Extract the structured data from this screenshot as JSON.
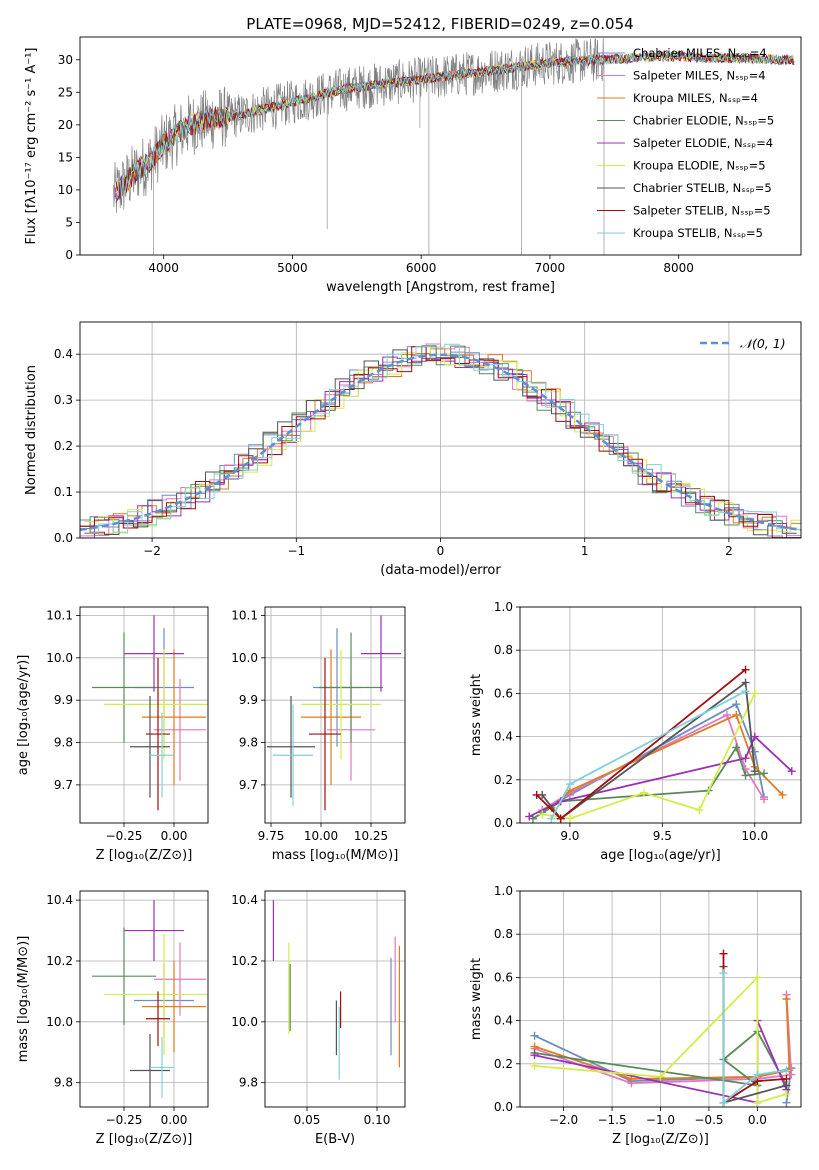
{
  "figure_title": "PLATE=0968, MJD=52412, FIBERID=0249, z=0.054",
  "colors": [
    "#6c8ebf",
    "#e377c2",
    "#e07b1f",
    "#5a8a5a",
    "#9b30b6",
    "#d4ec4a",
    "#555555",
    "#a30d0d",
    "#7fd1d8"
  ],
  "chart_data": [
    {
      "id": "spectrum",
      "type": "line",
      "title": "PLATE=0968, MJD=52412, FIBERID=0249, z=0.054",
      "xlabel": "wavelength [Angstrom, rest frame]",
      "ylabel": "Flux [fλ10⁻¹⁷ erg cm⁻² s⁻¹ A⁻¹]",
      "xlim": [
        3350,
        8950
      ],
      "ylim": [
        0,
        33.5
      ],
      "xticks": [
        4000,
        5000,
        6000,
        7000,
        8000
      ],
      "yticks": [
        0,
        5,
        10,
        15,
        20,
        25,
        30
      ],
      "grid": false,
      "legend_position": "right",
      "legend": [
        "Chabrier MILES, N_SSP=4",
        "Salpeter MILES, N_SSP=4",
        "Kroupa MILES, N_SSP=4",
        "Chabrier ELODIE, N_SSP=5",
        "Salpeter ELODIE, N_SSP=4",
        "Kroupa ELODIE, N_SSP=5",
        "Chabrier STELIB, N_SSP=5",
        "Salpeter STELIB, N_SSP=5",
        "Kroupa STELIB, N_SSP=5"
      ],
      "continuum": {
        "x": [
          3600,
          3700,
          3800,
          3900,
          4000,
          4100,
          4200,
          4300,
          4400,
          4600,
          4800,
          5000,
          5200,
          5400,
          5600,
          5800,
          6000,
          6200,
          6400,
          6600,
          6800,
          7000,
          7200,
          7400,
          7600,
          7800,
          8000,
          8200,
          8400,
          8600,
          8800
        ],
        "y": [
          9,
          11,
          13,
          14.5,
          17,
          18.5,
          20,
          20.5,
          21,
          21.5,
          22.5,
          23.5,
          24.5,
          25.5,
          26,
          26.5,
          27,
          27.5,
          28,
          28.5,
          29,
          29.5,
          29.8,
          30,
          30.2,
          30.5,
          30.5,
          30.3,
          30.3,
          30.2,
          30
        ]
      }
    },
    {
      "id": "residuals",
      "type": "line",
      "xlabel": "(data-model)/error",
      "ylabel": "Normed distribution",
      "xlim": [
        -2.5,
        2.5
      ],
      "ylim": [
        0,
        0.47
      ],
      "xticks": [
        -2,
        -1,
        0,
        1,
        2
      ],
      "yticks": [
        0.0,
        0.1,
        0.2,
        0.3,
        0.4
      ],
      "grid": true,
      "legend": [
        "𝒩(0, 1)"
      ],
      "legend_position": "top-right",
      "gaussian": {
        "mean": 0,
        "sigma": 1
      }
    },
    {
      "id": "age_vs_Z",
      "type": "scatter",
      "xlabel": "Z [log₁₀(Z/Z⊙)]",
      "ylabel": "age  [log₁₀(age/yr)]",
      "xlim": [
        -0.47,
        0.17
      ],
      "ylim": [
        9.61,
        10.12
      ],
      "xticks": [
        -0.25,
        0.0
      ],
      "yticks": [
        9.7,
        9.8,
        9.9,
        10.0,
        10.1
      ],
      "grid": true,
      "points": [
        {
          "x": -0.05,
          "y": 9.93,
          "xerr": 0.15,
          "yerr": 0.14,
          "c": 0
        },
        {
          "x": 0.03,
          "y": 9.83,
          "xerr": 0.13,
          "yerr": 0.12,
          "c": 1
        },
        {
          "x": 0.0,
          "y": 9.86,
          "xerr": 0.16,
          "yerr": 0.16,
          "c": 2
        },
        {
          "x": -0.25,
          "y": 9.93,
          "xerr": 0.16,
          "yerr": 0.13,
          "c": 3
        },
        {
          "x": -0.1,
          "y": 10.01,
          "xerr": 0.15,
          "yerr": 0.09,
          "c": 4
        },
        {
          "x": -0.05,
          "y": 9.89,
          "xerr": 0.3,
          "yerr": 0.13,
          "c": 5
        },
        {
          "x": -0.12,
          "y": 9.79,
          "xerr": 0.1,
          "yerr": 0.12,
          "c": 6
        },
        {
          "x": -0.08,
          "y": 9.82,
          "xerr": 0.06,
          "yerr": 0.18,
          "c": 7
        },
        {
          "x": -0.06,
          "y": 9.77,
          "xerr": 0.06,
          "yerr": 0.1,
          "c": 8
        }
      ]
    },
    {
      "id": "age_vs_mass",
      "type": "scatter",
      "xlabel": "mass [log₁₀(M/M⊙)]",
      "ylabel": "",
      "xlim": [
        9.72,
        10.42
      ],
      "ylim": [
        9.61,
        10.12
      ],
      "xticks": [
        9.75,
        10.0,
        10.25
      ],
      "yticks": [
        9.7,
        9.8,
        9.9,
        10.0,
        10.1
      ],
      "grid": true,
      "points": [
        {
          "x": 10.08,
          "y": 9.93,
          "xerr": 0.12,
          "yerr": 0.14,
          "c": 0
        },
        {
          "x": 10.15,
          "y": 9.83,
          "xerr": 0.12,
          "yerr": 0.12,
          "c": 1
        },
        {
          "x": 10.05,
          "y": 9.86,
          "xerr": 0.15,
          "yerr": 0.16,
          "c": 2
        },
        {
          "x": 10.15,
          "y": 9.93,
          "xerr": 0.16,
          "yerr": 0.13,
          "c": 3
        },
        {
          "x": 10.3,
          "y": 10.01,
          "xerr": 0.1,
          "yerr": 0.09,
          "c": 4
        },
        {
          "x": 10.1,
          "y": 9.89,
          "xerr": 0.2,
          "yerr": 0.13,
          "c": 5
        },
        {
          "x": 9.85,
          "y": 9.79,
          "xerr": 0.12,
          "yerr": 0.12,
          "c": 6
        },
        {
          "x": 10.02,
          "y": 9.82,
          "xerr": 0.08,
          "yerr": 0.18,
          "c": 7
        },
        {
          "x": 9.86,
          "y": 9.77,
          "xerr": 0.1,
          "yerr": 0.12,
          "c": 8
        }
      ]
    },
    {
      "id": "weight_vs_age",
      "type": "line",
      "xlabel": "age  [log₁₀(age/yr)]",
      "ylabel": "mass weight",
      "xlim": [
        8.73,
        10.25
      ],
      "ylim": [
        0,
        1.0
      ],
      "xticks": [
        9.0,
        9.5,
        10.0
      ],
      "yticks": [
        0.0,
        0.2,
        0.4,
        0.6,
        0.8,
        1.0
      ],
      "grid": true,
      "series": [
        {
          "c": 0,
          "x": [
            8.85,
            9.0,
            9.9,
            10.0,
            10.05
          ],
          "y": [
            0.05,
            0.13,
            0.55,
            0.33,
            0.12
          ]
        },
        {
          "c": 1,
          "x": [
            8.85,
            9.0,
            9.85,
            9.95,
            10.05
          ],
          "y": [
            0.06,
            0.14,
            0.5,
            0.25,
            0.11
          ]
        },
        {
          "c": 2,
          "x": [
            8.9,
            9.0,
            9.9,
            10.0,
            10.15
          ],
          "y": [
            0.07,
            0.15,
            0.5,
            0.26,
            0.13
          ]
        },
        {
          "c": 3,
          "x": [
            8.8,
            8.95,
            9.75,
            9.9,
            9.95,
            10.05
          ],
          "y": [
            0.02,
            0.1,
            0.15,
            0.35,
            0.22,
            0.23
          ]
        },
        {
          "c": 4,
          "x": [
            8.78,
            8.95,
            9.95,
            10.0,
            10.2
          ],
          "y": [
            0.03,
            0.1,
            0.3,
            0.4,
            0.24
          ]
        },
        {
          "c": 5,
          "x": [
            8.85,
            9.0,
            9.4,
            9.7,
            10.0
          ],
          "y": [
            0.04,
            0.02,
            0.14,
            0.06,
            0.6
          ]
        },
        {
          "c": 6,
          "x": [
            8.85,
            8.95,
            9.95,
            10.0
          ],
          "y": [
            0.13,
            0.02,
            0.65,
            0.24
          ]
        },
        {
          "c": 7,
          "x": [
            8.82,
            8.95,
            9.95
          ],
          "y": [
            0.13,
            0.02,
            0.71
          ]
        },
        {
          "c": 8,
          "x": [
            8.9,
            9.0,
            9.95
          ],
          "y": [
            0.02,
            0.18,
            0.61
          ]
        }
      ]
    },
    {
      "id": "mass_vs_Z",
      "type": "scatter",
      "xlabel": "Z [log₁₀(Z/Z⊙)]",
      "ylabel": "mass [log₁₀(M/M⊙)]",
      "xlim": [
        -0.47,
        0.17
      ],
      "ylim": [
        9.72,
        10.43
      ],
      "xticks": [
        -0.25,
        0.0
      ],
      "yticks": [
        9.8,
        10.0,
        10.2,
        10.4
      ],
      "grid": true,
      "points": [
        {
          "x": -0.05,
          "y": 10.07,
          "xerr": 0.15,
          "yerr": 0.12,
          "c": 0
        },
        {
          "x": 0.03,
          "y": 10.14,
          "xerr": 0.13,
          "yerr": 0.12,
          "c": 1
        },
        {
          "x": 0.0,
          "y": 10.05,
          "xerr": 0.16,
          "yerr": 0.15,
          "c": 2
        },
        {
          "x": -0.25,
          "y": 10.15,
          "xerr": 0.16,
          "yerr": 0.16,
          "c": 3
        },
        {
          "x": -0.1,
          "y": 10.3,
          "xerr": 0.15,
          "yerr": 0.1,
          "c": 4
        },
        {
          "x": -0.05,
          "y": 10.09,
          "xerr": 0.3,
          "yerr": 0.2,
          "c": 5
        },
        {
          "x": -0.12,
          "y": 9.84,
          "xerr": 0.1,
          "yerr": 0.12,
          "c": 6
        },
        {
          "x": -0.08,
          "y": 10.01,
          "xerr": 0.06,
          "yerr": 0.09,
          "c": 7
        },
        {
          "x": -0.06,
          "y": 9.85,
          "xerr": 0.06,
          "yerr": 0.1,
          "c": 8
        }
      ]
    },
    {
      "id": "mass_vs_ebv",
      "type": "scatter",
      "xlabel": "E(B-V)",
      "ylabel": "",
      "xlim": [
        0.02,
        0.12
      ],
      "ylim": [
        9.72,
        10.43
      ],
      "xticks": [
        0.05,
        0.1
      ],
      "yticks": [
        9.8,
        10.0,
        10.2,
        10.4
      ],
      "grid": true,
      "points": [
        {
          "x": 0.11,
          "y": 10.05,
          "yerr": 0.16,
          "c": 0
        },
        {
          "x": 0.113,
          "y": 10.14,
          "yerr": 0.14,
          "c": 1
        },
        {
          "x": 0.116,
          "y": 10.05,
          "yerr": 0.2,
          "c": 2
        },
        {
          "x": 0.038,
          "y": 10.08,
          "yerr": 0.11,
          "c": 3
        },
        {
          "x": 0.026,
          "y": 10.3,
          "yerr": 0.1,
          "c": 4
        },
        {
          "x": 0.037,
          "y": 10.11,
          "yerr": 0.15,
          "c": 5
        },
        {
          "x": 0.071,
          "y": 9.98,
          "yerr": 0.09,
          "c": 6
        },
        {
          "x": 0.074,
          "y": 10.04,
          "yerr": 0.06,
          "c": 7
        },
        {
          "x": 0.073,
          "y": 9.93,
          "yerr": 0.12,
          "c": 8
        }
      ]
    },
    {
      "id": "weight_vs_Z",
      "type": "line",
      "xlabel": "Z [log₁₀(Z/Z⊙)]",
      "ylabel": "mass weight",
      "xlim": [
        -2.45,
        0.45
      ],
      "ylim": [
        0,
        1.0
      ],
      "xticks": [
        -2.0,
        -1.5,
        -1.0,
        -0.5,
        0.0
      ],
      "yticks": [
        0.0,
        0.2,
        0.4,
        0.6,
        0.8,
        1.0
      ],
      "grid": true,
      "series": [
        {
          "c": 0,
          "x": [
            -2.3,
            -1.3,
            0.0,
            0.35,
            0.3
          ],
          "y": [
            0.33,
            0.12,
            0.14,
            0.18,
            0.02
          ]
        },
        {
          "c": 1,
          "x": [
            -2.3,
            -1.3,
            0.0,
            0.35,
            0.3
          ],
          "y": [
            0.27,
            0.11,
            0.13,
            0.15,
            0.52
          ]
        },
        {
          "c": 2,
          "x": [
            -2.3,
            -1.3,
            0.0,
            0.33,
            0.3
          ],
          "y": [
            0.28,
            0.13,
            0.14,
            0.17,
            0.5
          ]
        },
        {
          "c": 3,
          "x": [
            -2.3,
            0.0,
            -0.35,
            0.0,
            0.3
          ],
          "y": [
            0.25,
            0.1,
            0.22,
            0.35,
            0.1
          ]
        },
        {
          "c": 4,
          "x": [
            -2.3,
            0.0,
            0.0,
            0.3
          ],
          "y": [
            0.24,
            0.02,
            0.4,
            0.08
          ]
        },
        {
          "c": 5,
          "x": [
            -2.3,
            -1.0,
            0.0,
            0.0,
            0.3
          ],
          "y": [
            0.19,
            0.14,
            0.6,
            0.02,
            0.06
          ]
        },
        {
          "c": 6,
          "x": [
            -0.35,
            -0.35,
            0.3
          ],
          "y": [
            0.65,
            0.02,
            0.1
          ]
        },
        {
          "c": 7,
          "x": [
            -0.35,
            -0.35,
            0.0,
            0.3
          ],
          "y": [
            0.71,
            0.02,
            0.12,
            0.13
          ]
        },
        {
          "c": 8,
          "x": [
            -0.35,
            -0.35,
            0.0,
            0.3
          ],
          "y": [
            0.62,
            0.02,
            0.15,
            0.17
          ]
        }
      ]
    }
  ]
}
